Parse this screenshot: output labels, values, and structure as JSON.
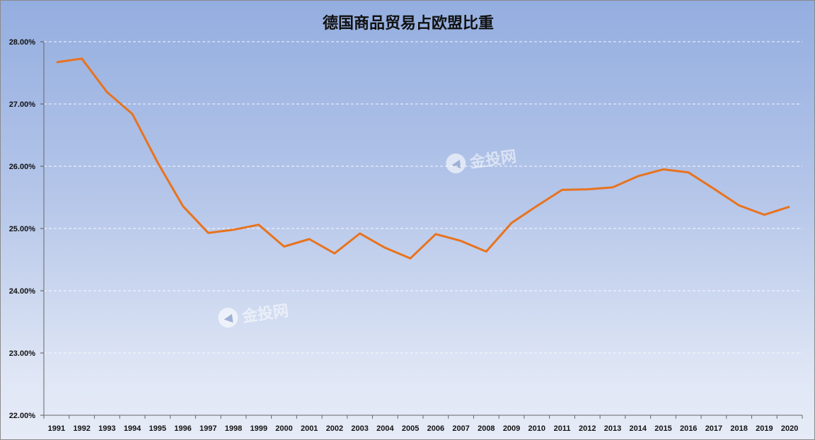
{
  "chart_data": {
    "type": "line",
    "title": "德国商品贸易占欧盟比重",
    "x": [
      "1991",
      "1992",
      "1993",
      "1994",
      "1995",
      "1996",
      "1997",
      "1998",
      "1999",
      "2000",
      "2001",
      "2002",
      "2003",
      "2004",
      "2005",
      "2006",
      "2007",
      "2008",
      "2009",
      "2010",
      "2011",
      "2012",
      "2013",
      "2014",
      "2015",
      "2016",
      "2017",
      "2018",
      "2019",
      "2020"
    ],
    "series": [
      {
        "values": [
          27.67,
          27.73,
          27.19,
          26.84,
          26.06,
          25.36,
          24.93,
          24.98,
          25.06,
          24.71,
          24.83,
          24.6,
          24.92,
          24.69,
          24.52,
          24.91,
          24.8,
          24.63,
          25.09,
          25.36,
          25.62,
          25.63,
          25.66,
          25.84,
          25.95,
          25.9,
          25.64,
          25.37,
          25.22,
          25.35
        ]
      }
    ],
    "ylim": [
      22,
      28
    ],
    "yticks": [
      "22.00%",
      "23.00%",
      "24.00%",
      "25.00%",
      "26.00%",
      "27.00%",
      "28.00%"
    ],
    "grid": true,
    "line_color": "#e8731e"
  },
  "watermark": {
    "text": "金投网",
    "icon": "jintou-logo-icon"
  }
}
